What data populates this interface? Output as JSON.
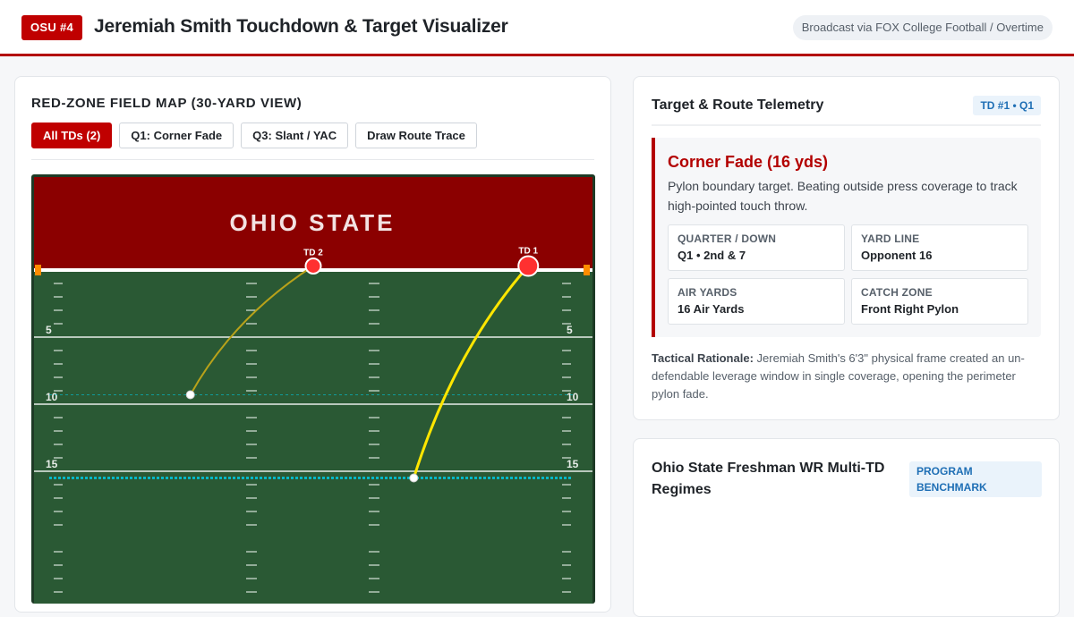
{
  "header": {
    "badge": "OSU #4",
    "title": "Jeremiah Smith Touchdown & Target Visualizer",
    "broadcast": "Broadcast via FOX College Football / Overtime"
  },
  "map": {
    "title": "RED-ZONE FIELD MAP (30-YARD VIEW)",
    "filters": [
      {
        "label": "All TDs (2)",
        "active": true
      },
      {
        "label": "Q1: Corner Fade",
        "active": false
      },
      {
        "label": "Q3: Slant / YAC",
        "active": false
      },
      {
        "label": "Draw Route Trace",
        "active": false
      }
    ],
    "endzone_text": "OHIO STATE",
    "yard_numbers": [
      "5",
      "10",
      "15"
    ],
    "touchdowns": [
      {
        "label": "TD 1",
        "route": "Corner Fade",
        "start_yard": 15.5,
        "catch_yard": -0.3,
        "start_field_x": 0.68,
        "catch_field_x": 0.885
      },
      {
        "label": "TD 2",
        "route": "Slant / YAC",
        "start_yard": 9.3,
        "catch_yard": -0.3,
        "start_field_x": 0.28,
        "catch_field_x": 0.5
      }
    ],
    "colors": {
      "endzone": "#8b0000",
      "field": "#2a5934",
      "route_primary": "#ffe600",
      "route_secondary": "#b8a21a",
      "marker": "#ff3030"
    }
  },
  "telemetry": {
    "title": "Target & Route Telemetry",
    "badge": "TD #1 • Q1",
    "play_name": "Corner Fade (16 yds)",
    "play_desc": "Pylon boundary target. Beating outside press coverage to track high-pointed touch throw.",
    "stats": [
      {
        "label": "QUARTER / DOWN",
        "value": "Q1 • 2nd & 7"
      },
      {
        "label": "YARD LINE",
        "value": "Opponent 16"
      },
      {
        "label": "AIR YARDS",
        "value": "16 Air Yards"
      },
      {
        "label": "CATCH ZONE",
        "value": "Front Right Pylon"
      }
    ],
    "rationale_label": "Tactical Rationale:",
    "rationale_text": "Jeremiah Smith's 6'3\" physical frame created an un-defendable leverage window in single coverage, opening the perimeter pylon fade."
  },
  "benchmark": {
    "title": "Ohio State Freshman WR Multi-TD Regimes",
    "badge": "PROGRAM BENCHMARK"
  }
}
